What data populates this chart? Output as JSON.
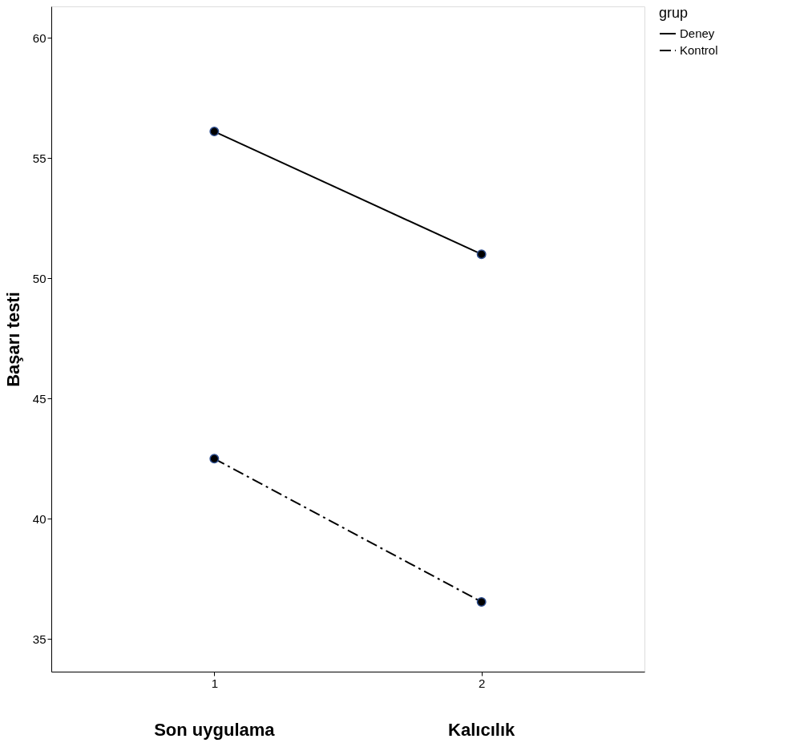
{
  "chart_data": {
    "type": "line",
    "ylabel": "Başarı testi",
    "legend_title": "grup",
    "x": [
      1,
      2
    ],
    "series": [
      {
        "name": "Deney",
        "color": "#000000",
        "values": [
          56.1,
          51.0
        ],
        "line_style": "solid"
      },
      {
        "name": "Kontrol",
        "color": "#000000",
        "values": [
          42.5,
          36.55
        ],
        "line_style": "dashed"
      }
    ],
    "xlim": [
      0.39,
      2.61
    ],
    "xticks": [
      1,
      2
    ],
    "ylim": [
      33.65,
      61.3
    ],
    "yticks": [
      35,
      40,
      45,
      50,
      55,
      60
    ],
    "annotations": [
      "Son uygulama",
      "Kalıcılık"
    ],
    "grid": false,
    "legend": "top right",
    "marker": "circle"
  }
}
